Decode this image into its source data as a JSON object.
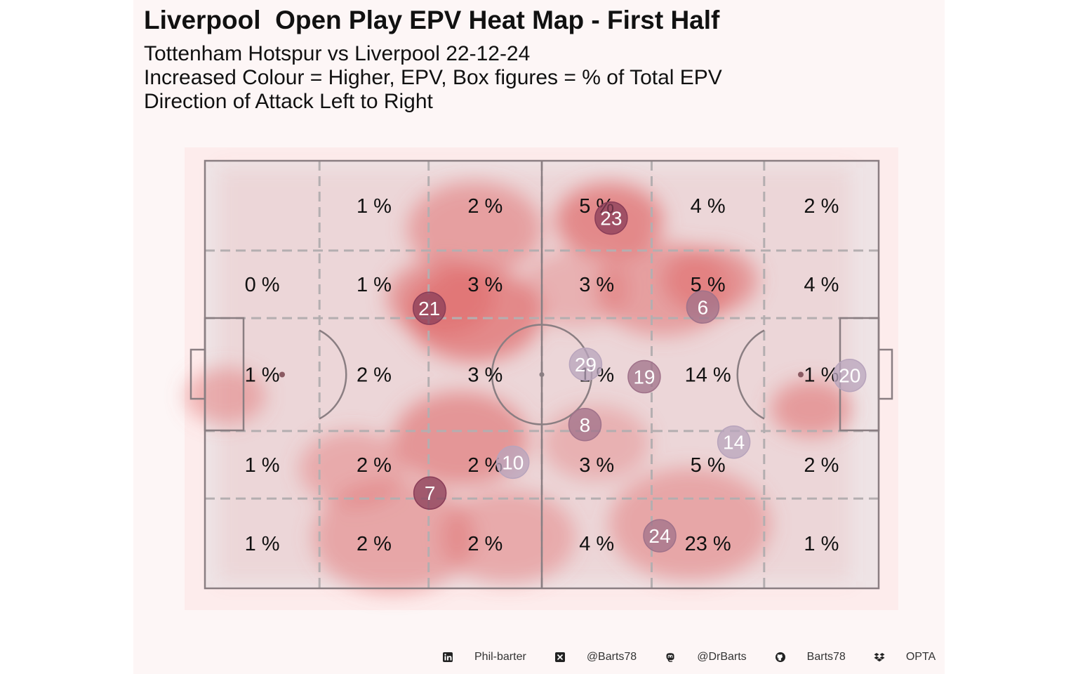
{
  "title": "Liverpool  Open Play EPV Heat Map - First Half",
  "subtitle_lines": [
    "Tottenham Hotspur vs Liverpool 22-12-24",
    "Increased Colour = Higher, EPV, Box figures = % of Total EPV",
    "Direction of Attack Left to Right"
  ],
  "chart_data": {
    "type": "heatmap",
    "title": "Liverpool  Open Play EPV Heat Map - First Half",
    "grid_labels": [
      [
        "",
        "1 %",
        "2 %",
        "5 %",
        "4 %",
        "2 %"
      ],
      [
        "0 %",
        "1 %",
        "3 %",
        "3 %",
        "5 %",
        "4 %"
      ],
      [
        "1 %",
        "2 %",
        "3 %",
        "1 %",
        "14 %",
        "1 %"
      ],
      [
        "1 %",
        "2 %",
        "2 %",
        "3 %",
        "5 %",
        "2 %"
      ],
      [
        "1 %",
        "2 %",
        "2 %",
        "4 %",
        "23 %",
        "1 %"
      ]
    ],
    "grid_percent_values": [
      [
        null,
        1,
        2,
        5,
        4,
        2
      ],
      [
        0,
        1,
        3,
        3,
        5,
        4
      ],
      [
        1,
        2,
        3,
        1,
        14,
        1
      ],
      [
        1,
        2,
        2,
        3,
        5,
        2
      ],
      [
        1,
        2,
        2,
        4,
        23,
        1
      ]
    ],
    "x_range": [
      0,
      100
    ],
    "y_range": [
      0,
      100
    ],
    "x_zone_edges": [
      0,
      17,
      33.2,
      50,
      66.3,
      83,
      100
    ],
    "y_zone_edges": [
      0,
      21,
      36.8,
      63.2,
      79,
      100
    ],
    "players": [
      {
        "number": "23",
        "x": 60.3,
        "y": 13.4,
        "shade": "dark"
      },
      {
        "number": "21",
        "x": 33.3,
        "y": 34.5,
        "shade": "dark"
      },
      {
        "number": "6",
        "x": 73.9,
        "y": 34.2,
        "shade": "mid"
      },
      {
        "number": "29",
        "x": 56.5,
        "y": 47.6,
        "shade": "light"
      },
      {
        "number": "19",
        "x": 65.2,
        "y": 50.5,
        "shade": "mid"
      },
      {
        "number": "20",
        "x": 95.7,
        "y": 50.2,
        "shade": "light"
      },
      {
        "number": "8",
        "x": 56.4,
        "y": 61.7,
        "shade": "mid"
      },
      {
        "number": "14",
        "x": 78.5,
        "y": 65.8,
        "shade": "light"
      },
      {
        "number": "10",
        "x": 45.7,
        "y": 70.5,
        "shade": "light"
      },
      {
        "number": "7",
        "x": 33.4,
        "y": 77.7,
        "shade": "dark"
      },
      {
        "number": "24",
        "x": 67.5,
        "y": 87.7,
        "shade": "mid"
      }
    ],
    "heat_blobs": [
      {
        "x": 40,
        "y": 16,
        "r": 10,
        "w": 0.5
      },
      {
        "x": 60,
        "y": 14,
        "r": 8,
        "w": 0.7
      },
      {
        "x": 35,
        "y": 32,
        "r": 8,
        "w": 0.6
      },
      {
        "x": 40,
        "y": 36,
        "r": 10,
        "w": 0.7
      },
      {
        "x": 68,
        "y": 30,
        "r": 10,
        "w": 0.5
      },
      {
        "x": 75,
        "y": 28,
        "r": 7,
        "w": 0.6
      },
      {
        "x": 38,
        "y": 65,
        "r": 10,
        "w": 0.6
      },
      {
        "x": 22,
        "y": 72,
        "r": 8,
        "w": 0.4
      },
      {
        "x": 28,
        "y": 88,
        "r": 12,
        "w": 0.45
      },
      {
        "x": 45,
        "y": 88,
        "r": 10,
        "w": 0.4
      },
      {
        "x": 72,
        "y": 85,
        "r": 12,
        "w": 0.45
      },
      {
        "x": 90,
        "y": 58,
        "r": 6,
        "w": 0.55
      },
      {
        "x": 3,
        "y": 55,
        "r": 6,
        "w": 0.45
      },
      {
        "x": 58,
        "y": 66,
        "r": 8,
        "w": 0.35
      },
      {
        "x": 55,
        "y": 30,
        "r": 8,
        "w": 0.35
      }
    ],
    "colors": {
      "panel_bg": "#fdf6f6",
      "heat_bg": "#fdecec",
      "pitch_fill": "#eee4e6",
      "pitch_line": "#8a7e82",
      "zone_line": "#b4aeb0",
      "heat": "#e06a6a",
      "player_dark": "#8a3d58",
      "player_mid": "#a0728a",
      "player_light": "#b8a4bc"
    }
  },
  "footer": [
    {
      "icon": "linkedin-icon",
      "label": "Phil-barter"
    },
    {
      "icon": "x-icon",
      "label": "@Barts78"
    },
    {
      "icon": "mastodon-icon",
      "label": "@DrBarts"
    },
    {
      "icon": "github-icon",
      "label": "Barts78"
    },
    {
      "icon": "dropbox-icon",
      "label": "OPTA"
    }
  ]
}
